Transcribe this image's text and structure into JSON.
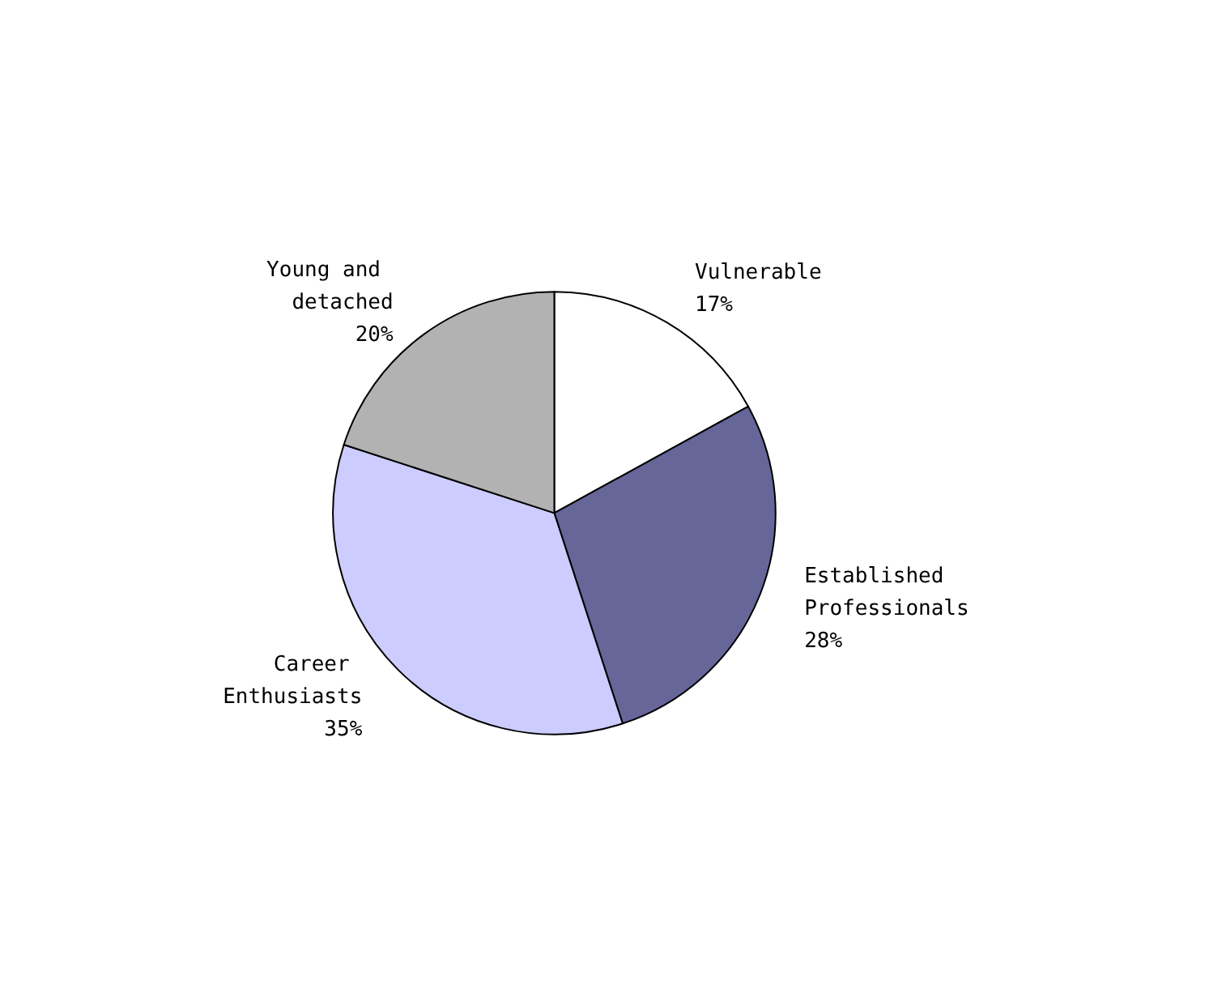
{
  "chart_data": {
    "type": "pie",
    "categories": [
      "Vulnerable",
      "Established Professionals",
      "Career Enthusiasts",
      "Young and detached"
    ],
    "values": [
      17,
      28,
      35,
      20
    ],
    "value_labels": [
      "17%",
      "28%",
      "35%",
      "20%"
    ],
    "colors": [
      "#ffffff",
      "#666699",
      "#ccccff",
      "#b2b2b2"
    ],
    "legend": false
  }
}
